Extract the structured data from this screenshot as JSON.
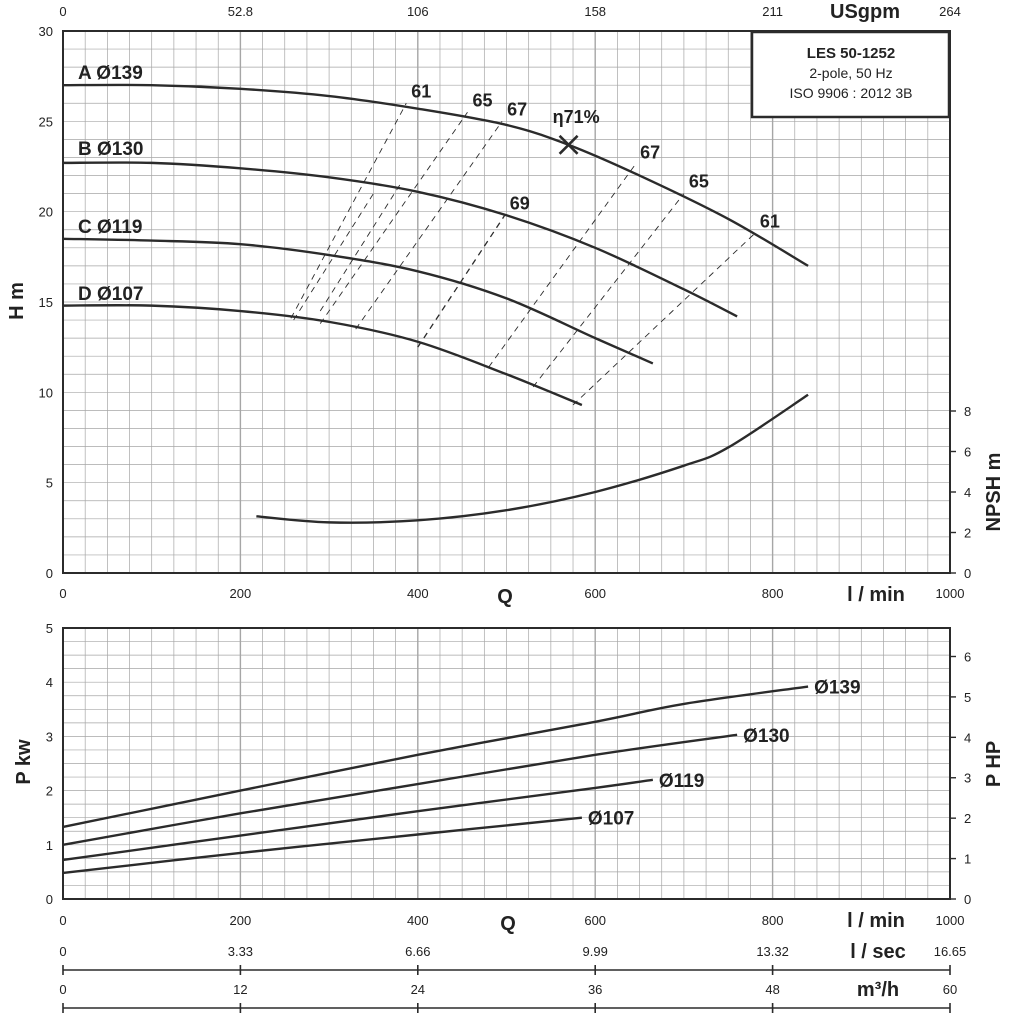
{
  "colors": {
    "ink": "#2b2b2b",
    "grid": "#a6a6a6",
    "background": "#ffffff"
  },
  "info_box": {
    "title": "LES 50-1252",
    "line1": "2-pole, 50 Hz",
    "line2": "ISO 9906 : 2012 3B"
  },
  "chart_data": [
    {
      "type": "line",
      "panel": "head",
      "xlabel": "Q",
      "x_unit": "l / min",
      "ylabel": "H m",
      "y2label": "NPSH m",
      "top_axis_label": "USgpm",
      "xlim": [
        0,
        1000
      ],
      "ylim": [
        0,
        30
      ],
      "y2lim": [
        0,
        8
      ],
      "xticks": [
        "0",
        "200",
        "400",
        "600",
        "800",
        "1000"
      ],
      "yticks": [
        "0",
        "5",
        "10",
        "15",
        "20",
        "25",
        "30"
      ],
      "y2ticks": [
        "0",
        "2",
        "4",
        "6",
        "8"
      ],
      "top_ticks": [
        "0",
        "52.8",
        "106",
        "158",
        "211",
        "264"
      ],
      "grid": true,
      "series": [
        {
          "name": "A Ø139",
          "x": [
            0,
            100,
            200,
            300,
            400,
            500,
            570,
            650,
            750,
            840
          ],
          "y": [
            27.0,
            27.0,
            26.8,
            26.4,
            25.7,
            24.8,
            23.7,
            22.0,
            19.6,
            17.0
          ]
        },
        {
          "name": "B Ø130",
          "x": [
            0,
            100,
            200,
            300,
            400,
            500,
            600,
            700,
            760
          ],
          "y": [
            22.7,
            22.7,
            22.4,
            21.9,
            21.1,
            19.8,
            18.0,
            15.7,
            14.2
          ]
        },
        {
          "name": "C Ø119",
          "x": [
            0,
            100,
            200,
            300,
            400,
            500,
            600,
            665
          ],
          "y": [
            18.5,
            18.4,
            18.2,
            17.6,
            16.7,
            15.2,
            13.0,
            11.6
          ]
        },
        {
          "name": "D Ø107",
          "x": [
            0,
            100,
            200,
            300,
            400,
            500,
            585
          ],
          "y": [
            14.8,
            14.8,
            14.5,
            13.9,
            12.8,
            11.0,
            9.3
          ]
        }
      ],
      "npsh_series": {
        "x": [
          218,
          300,
          400,
          500,
          600,
          700,
          750,
          840
        ],
        "y": [
          2.8,
          2.5,
          2.6,
          3.1,
          4.0,
          5.3,
          6.2,
          8.8
        ]
      },
      "efficiency_lines": [
        {
          "label": "61",
          "x": [
            257,
            387
          ],
          "y": [
            14.1,
            26.0
          ],
          "label_at": [
            387,
            26.0
          ]
        },
        {
          "label": "65",
          "x": [
            290,
            456
          ],
          "y": [
            13.8,
            25.5
          ],
          "label_at": [
            456,
            25.5
          ]
        },
        {
          "label": "67",
          "x": [
            330,
            495
          ],
          "y": [
            13.5,
            25.0
          ],
          "label_at": [
            495,
            25.0
          ]
        },
        {
          "label": "69",
          "x": [
            400,
            498
          ],
          "y": [
            12.5,
            19.8
          ],
          "label_at": [
            498,
            19.8
          ]
        },
        {
          "label": "67",
          "x": [
            480,
            645
          ],
          "y": [
            11.4,
            22.6
          ],
          "label_at": [
            645,
            22.6
          ]
        },
        {
          "label": "65",
          "x": [
            530,
            700
          ],
          "y": [
            10.3,
            21.0
          ],
          "label_at": [
            700,
            21.0
          ]
        },
        {
          "label": "61",
          "x": [
            575,
            780
          ],
          "y": [
            9.3,
            18.8
          ],
          "label_at": [
            780,
            18.8
          ]
        }
      ],
      "efficiency_lines_second": [
        {
          "x": [
            290,
            380
          ],
          "y": [
            14.5,
            21.5
          ]
        },
        {
          "x": [
            260,
            350
          ],
          "y": [
            14.0,
            21.0
          ]
        }
      ],
      "bep": {
        "x": 570,
        "y": 23.7,
        "label": "η71%"
      },
      "curve_labels": [
        "A Ø139",
        "B Ø130",
        "C Ø119",
        "D Ø107"
      ]
    },
    {
      "type": "line",
      "panel": "power",
      "xlabel": "Q",
      "x_unit": "l / min",
      "ylabel": "P kw",
      "y2label": "P HP",
      "xlim": [
        0,
        1000
      ],
      "ylim": [
        0,
        5
      ],
      "y2lim": [
        0,
        6.705
      ],
      "xticks": [
        "0",
        "200",
        "400",
        "600",
        "800",
        "1000"
      ],
      "yticks": [
        "0",
        "1",
        "2",
        "3",
        "4",
        "5"
      ],
      "y2ticks": [
        "0",
        "1",
        "2",
        "3",
        "4",
        "5",
        "6"
      ],
      "grid": true,
      "series": [
        {
          "name": "Ø139",
          "x": [
            0,
            200,
            400,
            600,
            700,
            840
          ],
          "y": [
            1.33,
            2.0,
            2.66,
            3.27,
            3.6,
            3.92
          ]
        },
        {
          "name": "Ø130",
          "x": [
            0,
            200,
            400,
            600,
            760
          ],
          "y": [
            1.0,
            1.58,
            2.12,
            2.66,
            3.03
          ]
        },
        {
          "name": "Ø119",
          "x": [
            0,
            200,
            400,
            600,
            665
          ],
          "y": [
            0.72,
            1.17,
            1.62,
            2.05,
            2.2
          ]
        },
        {
          "name": "Ø107",
          "x": [
            0,
            200,
            400,
            585
          ],
          "y": [
            0.48,
            0.85,
            1.19,
            1.5
          ]
        }
      ]
    }
  ],
  "bottom_axes": [
    {
      "label": "l / sec",
      "ticks": [
        "0",
        "3.33",
        "6.66",
        "9.99",
        "13.32",
        "16.65"
      ]
    },
    {
      "label": "m³/h",
      "ticks": [
        "0",
        "12",
        "24",
        "36",
        "48",
        "60"
      ]
    }
  ]
}
